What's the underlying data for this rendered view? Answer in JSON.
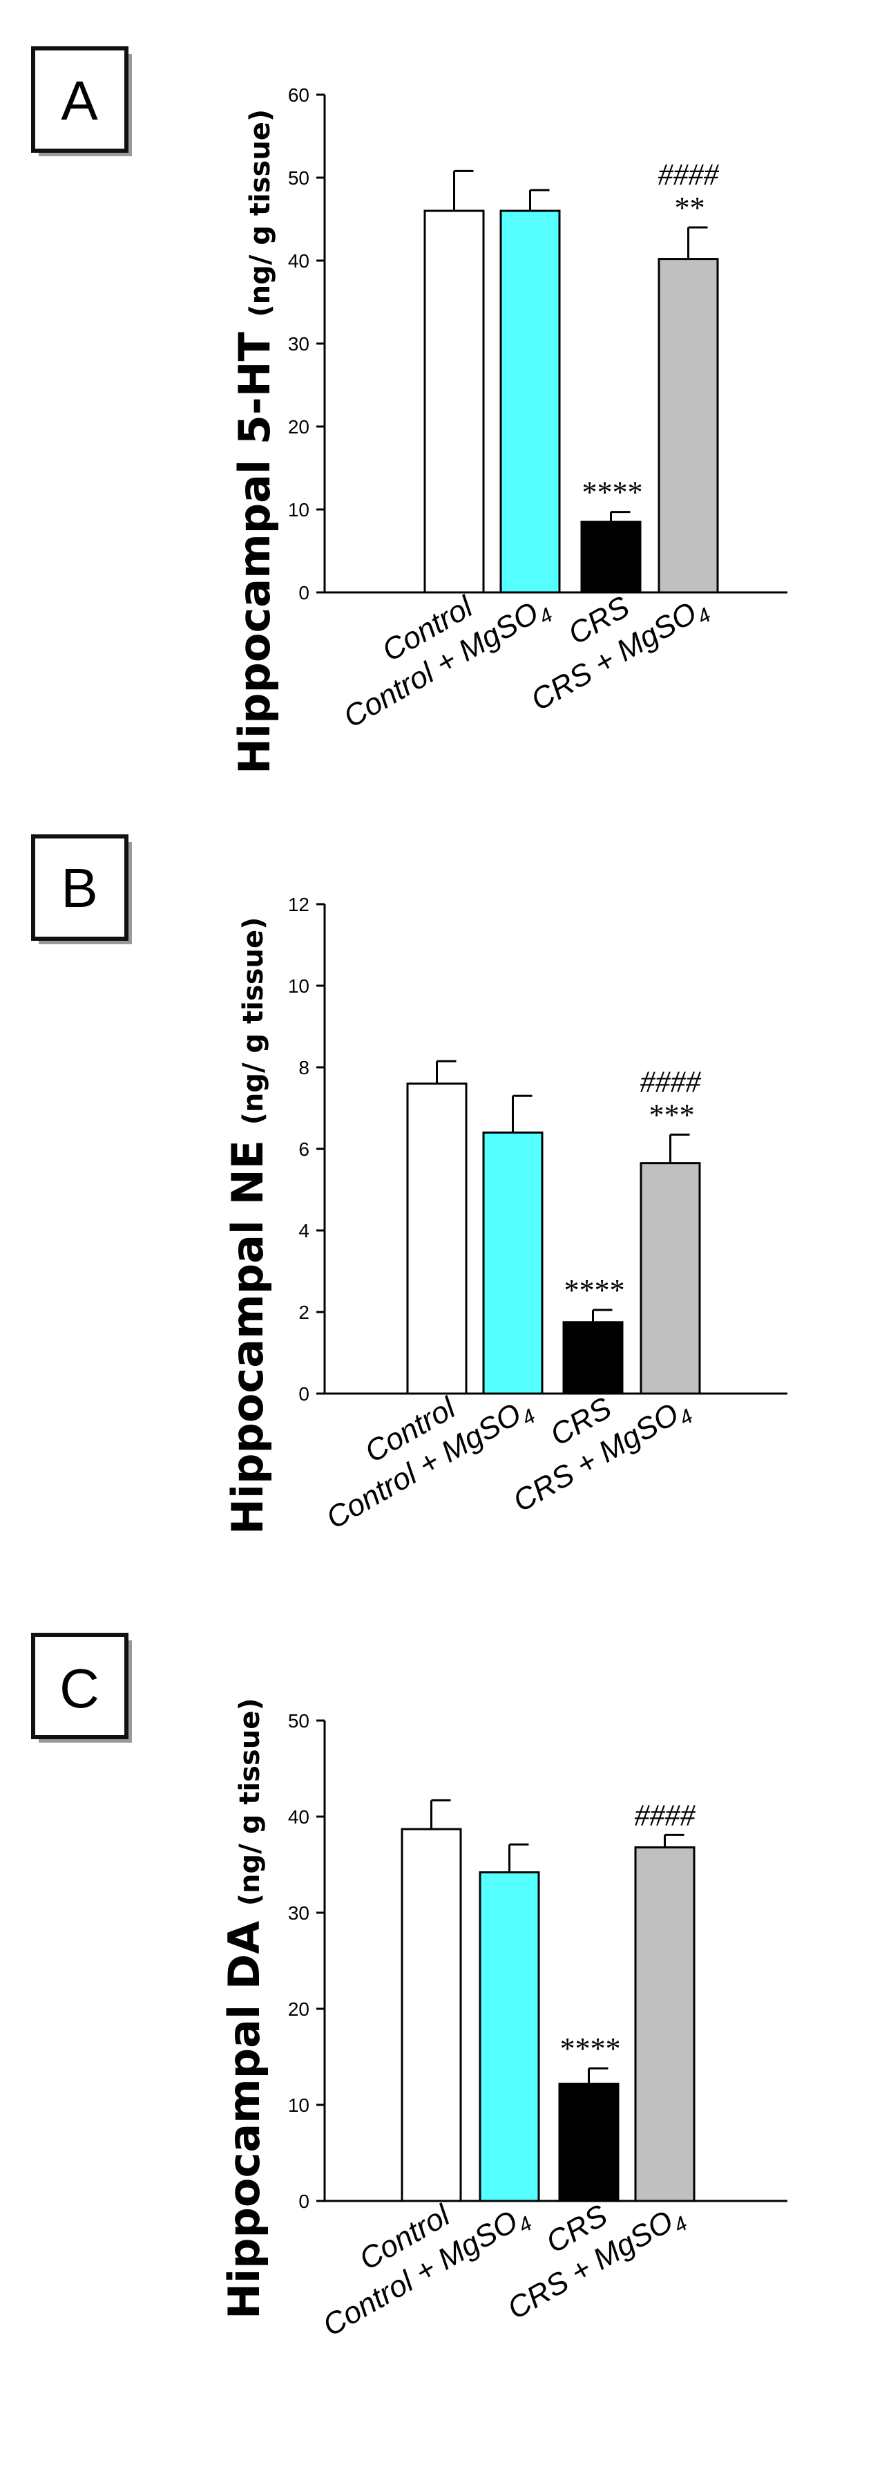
{
  "chart_data": [
    {
      "panel": "A",
      "type": "bar",
      "ylabel_main": "Hippocampal 5-HT",
      "ylabel_unit": "(ng/ g tissue)",
      "ylim": [
        0,
        60
      ],
      "yticks": [
        0,
        10,
        20,
        30,
        40,
        50,
        60
      ],
      "categories": [
        {
          "text": "Control",
          "sub": ""
        },
        {
          "text": "Control + MgSO",
          "sub": "4"
        },
        {
          "text": "CRS",
          "sub": ""
        },
        {
          "text": "CRS + MgSO",
          "sub": "4"
        }
      ],
      "colors": [
        "#ffffff",
        "#55ffff",
        "#000000",
        "#c0c0c0"
      ],
      "values": [
        46,
        46,
        8.5,
        40.2
      ],
      "errors": [
        4.8,
        2.5,
        1.2,
        3.8
      ],
      "annotations": [
        {
          "category": 2,
          "lines": [
            "****"
          ]
        },
        {
          "category": 3,
          "lines": [
            "####",
            "**"
          ]
        }
      ]
    },
    {
      "panel": "B",
      "type": "bar",
      "ylabel_main": "Hippocampal NE",
      "ylabel_unit": "(ng/ g tissue)",
      "ylim": [
        0,
        12
      ],
      "yticks": [
        0,
        2,
        4,
        6,
        8,
        10,
        12
      ],
      "categories": [
        {
          "text": "Control",
          "sub": ""
        },
        {
          "text": "Control + MgSO",
          "sub": "4"
        },
        {
          "text": "CRS",
          "sub": ""
        },
        {
          "text": "CRS + MgSO",
          "sub": "4"
        }
      ],
      "colors": [
        "#ffffff",
        "#55ffff",
        "#000000",
        "#c0c0c0"
      ],
      "values": [
        7.6,
        6.4,
        1.75,
        5.65
      ],
      "errors": [
        0.55,
        0.9,
        0.3,
        0.7
      ],
      "annotations": [
        {
          "category": 2,
          "lines": [
            "****"
          ]
        },
        {
          "category": 3,
          "lines": [
            "####",
            "***"
          ]
        }
      ]
    },
    {
      "panel": "C",
      "type": "bar",
      "ylabel_main": "Hippocampal DA",
      "ylabel_unit": "(ng/ g tissue)",
      "ylim": [
        0,
        50
      ],
      "yticks": [
        0,
        10,
        20,
        30,
        40,
        50
      ],
      "categories": [
        {
          "text": "Control",
          "sub": ""
        },
        {
          "text": "Control + MgSO",
          "sub": "4"
        },
        {
          "text": "CRS",
          "sub": ""
        },
        {
          "text": "CRS + MgSO",
          "sub": "4"
        }
      ],
      "colors": [
        "#ffffff",
        "#55ffff",
        "#000000",
        "#c0c0c0"
      ],
      "values": [
        38.7,
        34.2,
        12.2,
        36.8
      ],
      "errors": [
        3.0,
        2.9,
        1.6,
        1.3
      ],
      "annotations": [
        {
          "category": 2,
          "lines": [
            "****"
          ]
        },
        {
          "category": 3,
          "lines": [
            "####"
          ]
        }
      ]
    }
  ]
}
